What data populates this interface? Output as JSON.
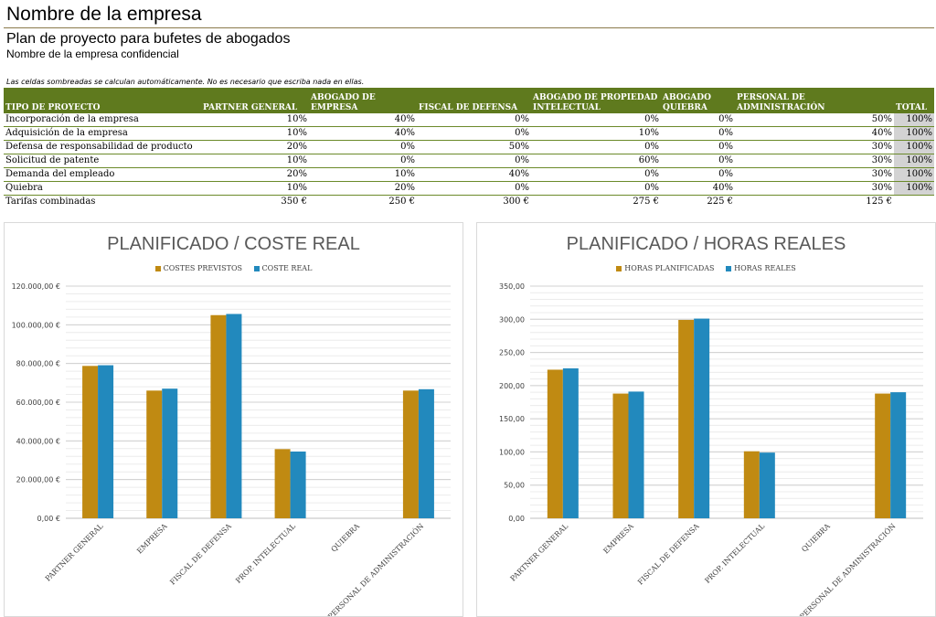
{
  "header": {
    "title": "Nombre de la empresa",
    "subtitle": "Plan de proyecto para bufetes de abogados",
    "company_line": "Nombre de la empresa confidencial",
    "note": "Las celdas sombreadas se calculan automáticamente. No es necesario que escriba nada en ellas."
  },
  "table": {
    "headers": [
      "TIPO DE PROYECTO",
      "PARTNER GENERAL",
      "ABOGADO DE EMPRESA",
      "FISCAL DE DEFENSA",
      "ABOGADO DE PROPIEDAD INTELECTUAL",
      "ABOGADO QUIEBRA",
      "PERSONAL DE ADMINISTRACIÓN",
      "TOTAL"
    ],
    "rows": [
      [
        "Incorporación de la empresa",
        "10%",
        "40%",
        "0%",
        "0%",
        "0%",
        "50%",
        "100%"
      ],
      [
        "Adquisición de la empresa",
        "10%",
        "40%",
        "0%",
        "10%",
        "0%",
        "40%",
        "100%"
      ],
      [
        "Defensa de responsabilidad de producto",
        "20%",
        "0%",
        "50%",
        "0%",
        "0%",
        "30%",
        "100%"
      ],
      [
        "Solicitud de patente",
        "10%",
        "0%",
        "0%",
        "60%",
        "0%",
        "30%",
        "100%"
      ],
      [
        "Demanda del empleado",
        "20%",
        "10%",
        "40%",
        "0%",
        "0%",
        "30%",
        "100%"
      ],
      [
        "Quiebra",
        "10%",
        "20%",
        "0%",
        "0%",
        "40%",
        "30%",
        "100%"
      ]
    ],
    "footer": [
      "Tarifas combinadas",
      "350 €",
      "250 €",
      "300 €",
      "275 €",
      "225 €",
      "125 €",
      ""
    ]
  },
  "colors": {
    "header_green": "#5f7a1e",
    "series_planned": "#c08a12",
    "series_actual": "#2289bd"
  },
  "chart_data": [
    {
      "type": "bar",
      "title": "PLANIFICADO / COSTE REAL",
      "categories": [
        "PARTNER GENERAL",
        "EMPRESA",
        "FISCAL DE DEFENSA",
        "PROP. INTELECTUAL",
        "QUIEBRA",
        "PERSONAL DE ADMINISTRACIÓN"
      ],
      "series": [
        {
          "name": "COSTES PREVISTOS",
          "values": [
            78750,
            66000,
            105000,
            35750,
            0,
            66000
          ]
        },
        {
          "name": "COSTE REAL",
          "values": [
            79100,
            67000,
            105600,
            34500,
            0,
            66700
          ]
        }
      ],
      "ylim": [
        0,
        120000
      ],
      "ytick_step": 20000,
      "yticks": [
        "0,00 €",
        "20.000,00 €",
        "40.000,00 €",
        "60.000,00 €",
        "80.000,00 €",
        "100.000,00 €",
        "120.000,00 €"
      ]
    },
    {
      "type": "bar",
      "title": "PLANIFICADO / HORAS REALES",
      "categories": [
        "PARTNER GENERAL",
        "EMPRESA",
        "FISCAL DE DEFENSA",
        "PROP. INTELECTUAL",
        "QUIEBRA",
        "PERSONAL DE ADMINISTRACIÓN"
      ],
      "series": [
        {
          "name": "HORAS PLANIFICADAS",
          "values": [
            224,
            188,
            299,
            101,
            0,
            188
          ]
        },
        {
          "name": "HORAS REALES",
          "values": [
            226,
            191,
            301,
            99,
            0,
            190
          ]
        }
      ],
      "ylim": [
        0,
        350
      ],
      "ytick_step": 50,
      "yticks": [
        "0,00",
        "50,00",
        "100,00",
        "150,00",
        "200,00",
        "250,00",
        "300,00",
        "350,00"
      ]
    }
  ]
}
